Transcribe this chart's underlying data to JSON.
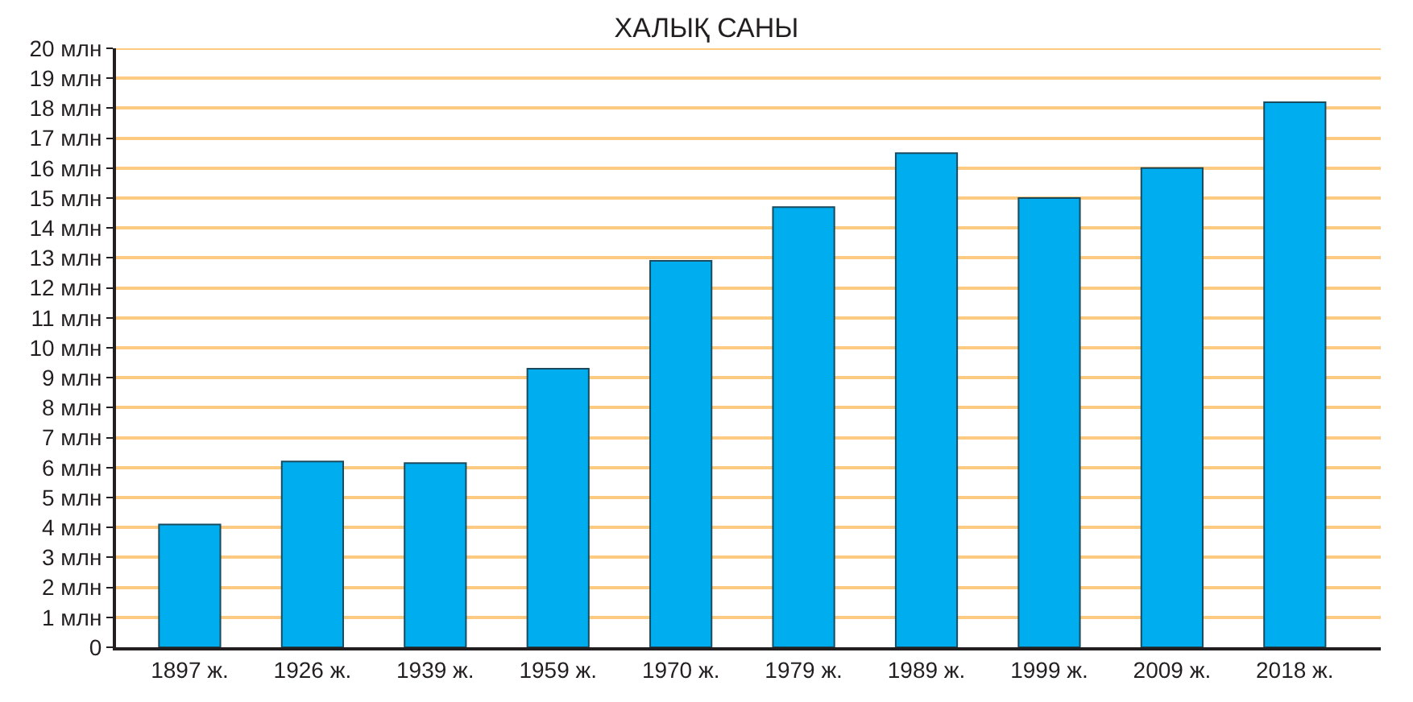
{
  "chart_data": {
    "type": "bar",
    "title": "ХАЛЫҚ САНЫ",
    "categories": [
      "1897 ж.",
      "1926 ж.",
      "1939 ж.",
      "1959 ж.",
      "1970 ж.",
      "1979 ж.",
      "1989 ж.",
      "1999 ж.",
      "2009 ж.",
      "2018 ж."
    ],
    "values": [
      4.1,
      6.2,
      6.15,
      9.3,
      12.9,
      14.7,
      16.5,
      15.0,
      16.0,
      18.2
    ],
    "color": "#00aeef",
    "ylim": [
      0,
      20
    ],
    "yticks": [
      0,
      {
        "value": 1,
        "label": "1 млн"
      },
      {
        "value": 2,
        "label": "2 млн"
      },
      {
        "value": 3,
        "label": "3 млн"
      },
      {
        "value": 4,
        "label": "4 млн"
      },
      {
        "value": 5,
        "label": "5 млн"
      },
      {
        "value": 6,
        "label": "6 млн"
      },
      {
        "value": 7,
        "label": "7 млн"
      },
      {
        "value": 8,
        "label": "8 млн"
      },
      {
        "value": 9,
        "label": "9 млн"
      },
      {
        "value": 10,
        "label": "10 млн"
      },
      {
        "value": 11,
        "label": "11 млн"
      },
      {
        "value": 12,
        "label": "12 млн"
      },
      {
        "value": 13,
        "label": "13 млн"
      },
      {
        "value": 14,
        "label": "14 млн"
      },
      {
        "value": 15,
        "label": "15 млн"
      },
      {
        "value": 16,
        "label": "16 млн"
      },
      {
        "value": 17,
        "label": "17 млн"
      },
      {
        "value": 18,
        "label": "18 млн"
      },
      {
        "value": 19,
        "label": "19 млн"
      },
      {
        "value": 20,
        "label": "20 млн"
      }
    ],
    "grid": "y"
  }
}
